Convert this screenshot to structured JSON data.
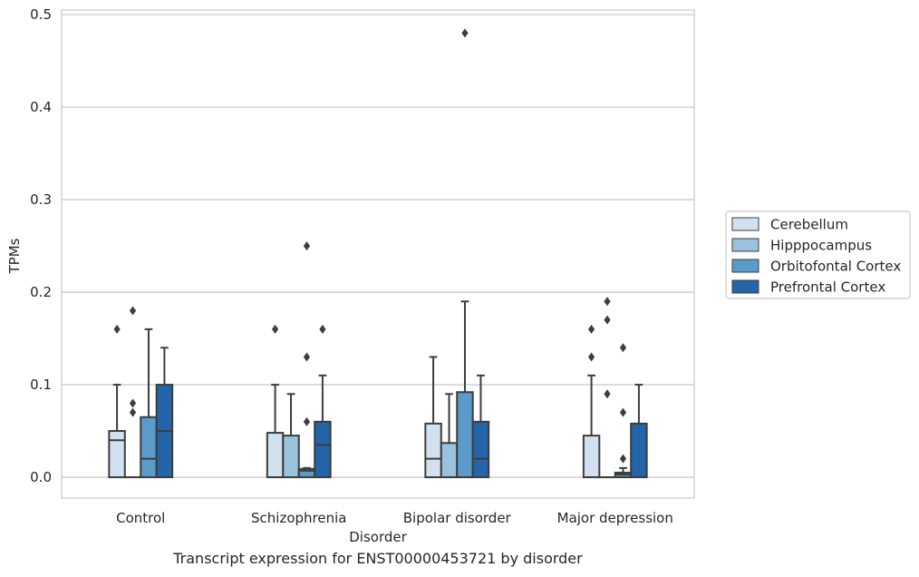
{
  "caption": "Transcript expression for ENST00000453721 by disorder",
  "chart_data": {
    "type": "box",
    "xlabel": "Disorder",
    "ylabel": "TPMs",
    "ylim": [
      -0.0225,
      0.505
    ],
    "yticks": [
      0.0,
      0.1,
      0.2,
      0.3,
      0.4,
      0.5
    ],
    "ytick_labels": [
      "0.0",
      "0.1",
      "0.2",
      "0.3",
      "0.4",
      "0.5"
    ],
    "grid": "horizontal",
    "legend_position": "right",
    "categories": [
      "Control",
      "Schizophrenia",
      "Bipolar disorder",
      "Major depression"
    ],
    "series": [
      {
        "name": "Cerebellum",
        "color": "#d2e1f0",
        "boxes": [
          {
            "q1": 0.0,
            "median": 0.04,
            "q3": 0.05,
            "whislo": 0.0,
            "whishi": 0.1,
            "fliers": [
              0.16
            ]
          },
          {
            "q1": 0.0,
            "median": 0.0,
            "q3": 0.048,
            "whislo": 0.0,
            "whishi": 0.1,
            "fliers": [
              0.16
            ]
          },
          {
            "q1": 0.0,
            "median": 0.02,
            "q3": 0.058,
            "whislo": 0.0,
            "whishi": 0.13,
            "fliers": []
          },
          {
            "q1": 0.0,
            "median": 0.0,
            "q3": 0.045,
            "whislo": 0.0,
            "whishi": 0.11,
            "fliers": [
              0.13,
              0.16
            ]
          }
        ]
      },
      {
        "name": "Hipppocampus",
        "color": "#9bc2dc",
        "boxes": [
          {
            "q1": 0.0,
            "median": 0.0,
            "q3": 0.0,
            "whislo": 0.0,
            "whishi": 0.0,
            "fliers": [
              0.07,
              0.08,
              0.18
            ]
          },
          {
            "q1": 0.0,
            "median": 0.0,
            "q3": 0.045,
            "whislo": 0.0,
            "whishi": 0.09,
            "fliers": []
          },
          {
            "q1": 0.0,
            "median": 0.0,
            "q3": 0.037,
            "whislo": 0.0,
            "whishi": 0.09,
            "fliers": []
          },
          {
            "q1": 0.0,
            "median": 0.0,
            "q3": 0.0,
            "whislo": 0.0,
            "whishi": 0.0,
            "fliers": [
              0.09,
              0.17,
              0.19
            ]
          }
        ]
      },
      {
        "name": "Orbitofontal Cortex",
        "color": "#5a9bc9",
        "boxes": [
          {
            "q1": 0.0,
            "median": 0.02,
            "q3": 0.065,
            "whislo": 0.0,
            "whishi": 0.16,
            "fliers": []
          },
          {
            "q1": 0.0,
            "median": 0.007,
            "q3": 0.009,
            "whislo": 0.0,
            "whishi": 0.01,
            "fliers": [
              0.06,
              0.13,
              0.25
            ]
          },
          {
            "q1": 0.0,
            "median": 0.0,
            "q3": 0.092,
            "whislo": 0.0,
            "whishi": 0.19,
            "fliers": [
              0.48
            ]
          },
          {
            "q1": 0.0,
            "median": 0.003,
            "q3": 0.005,
            "whislo": 0.0,
            "whishi": 0.01,
            "fliers": [
              0.02,
              0.07,
              0.14
            ]
          }
        ]
      },
      {
        "name": "Prefrontal Cortex",
        "color": "#2464a8",
        "boxes": [
          {
            "q1": 0.0,
            "median": 0.05,
            "q3": 0.1,
            "whislo": 0.0,
            "whishi": 0.14,
            "fliers": []
          },
          {
            "q1": 0.0,
            "median": 0.035,
            "q3": 0.06,
            "whislo": 0.0,
            "whishi": 0.11,
            "fliers": [
              0.16
            ]
          },
          {
            "q1": 0.0,
            "median": 0.02,
            "q3": 0.06,
            "whislo": 0.0,
            "whishi": 0.11,
            "fliers": []
          },
          {
            "q1": 0.0,
            "median": 0.0,
            "q3": 0.058,
            "whislo": 0.0,
            "whishi": 0.1,
            "fliers": []
          }
        ]
      }
    ]
  }
}
